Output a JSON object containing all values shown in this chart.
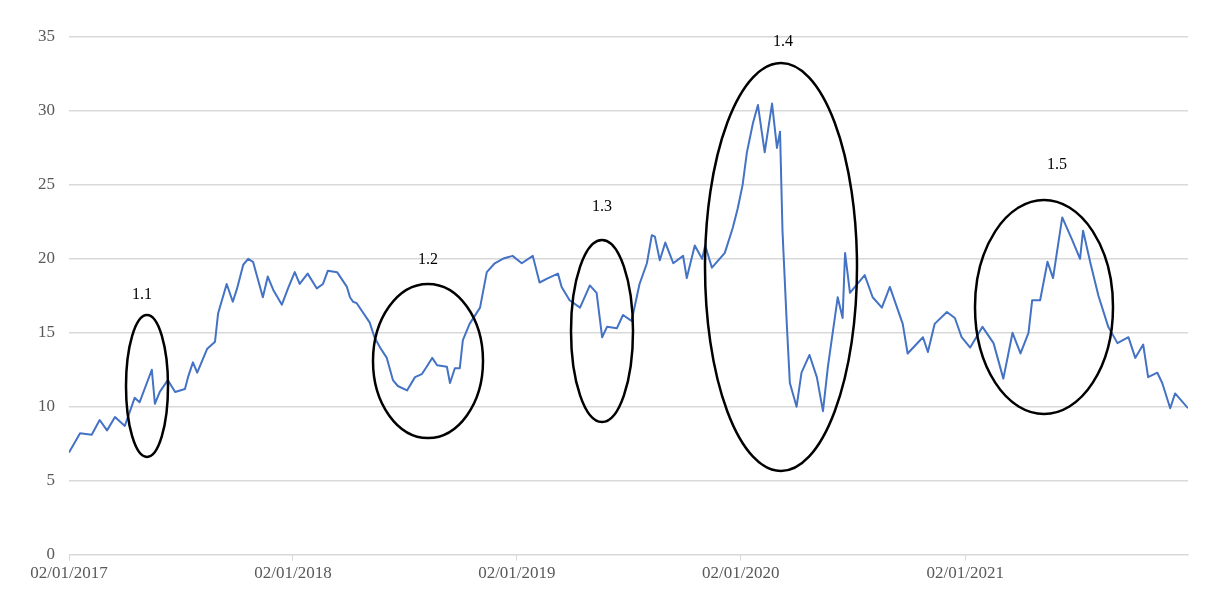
{
  "chart_data": {
    "type": "line",
    "x": [
      "2017-01-02",
      "2017-01-20",
      "2017-02-08",
      "2017-02-21",
      "2017-03-05",
      "2017-03-18",
      "2017-04-03",
      "2017-04-19",
      "2017-04-27",
      "2017-05-17",
      "2017-05-22",
      "2017-05-30",
      "2017-06-12",
      "2017-06-24",
      "2017-07-10",
      "2017-07-15",
      "2017-07-23",
      "2017-07-30",
      "2017-08-15",
      "2017-08-28",
      "2017-09-02",
      "2017-09-16",
      "2017-09-26",
      "2017-10-03",
      "2017-10-13",
      "2017-10-21",
      "2017-10-29",
      "2017-11-14",
      "2017-11-22",
      "2017-12-01",
      "2017-12-15",
      "2017-12-25",
      "2018-01-05",
      "2018-01-13",
      "2018-01-26",
      "2018-02-10",
      "2018-02-20",
      "2018-02-28",
      "2018-03-15",
      "2018-03-31",
      "2018-04-05",
      "2018-04-10",
      "2018-04-16",
      "2018-05-07",
      "2018-05-15",
      "2018-05-24",
      "2018-06-04",
      "2018-06-14",
      "2018-06-22",
      "2018-07-07",
      "2018-07-20",
      "2018-07-31",
      "2018-08-08",
      "2018-08-17",
      "2018-08-25",
      "2018-09-10",
      "2018-09-15",
      "2018-09-23",
      "2018-10-01",
      "2018-10-06",
      "2018-10-17",
      "2018-11-03",
      "2018-11-14",
      "2018-11-27",
      "2018-12-10",
      "2018-12-26",
      "2019-01-10",
      "2019-01-28",
      "2019-02-08",
      "2019-02-22",
      "2019-03-10",
      "2019-03-16",
      "2019-03-29",
      "2019-04-15",
      "2019-05-01",
      "2019-05-12",
      "2019-05-21",
      "2019-05-29",
      "2019-06-14",
      "2019-06-24",
      "2019-07-08",
      "2019-07-21",
      "2019-08-02",
      "2019-08-10",
      "2019-08-15",
      "2019-08-23",
      "2019-09-01",
      "2019-09-14",
      "2019-09-30",
      "2019-10-06",
      "2019-10-19",
      "2019-10-31",
      "2019-11-05",
      "2019-11-16",
      "2019-12-07",
      "2019-12-20",
      "2019-12-28",
      "2020-01-05",
      "2020-01-12",
      "2020-01-22",
      "2020-01-30",
      "2020-02-10",
      "2020-02-22",
      "2020-03-01",
      "2020-03-06",
      "2020-03-10",
      "2020-03-17",
      "2020-03-22",
      "2020-04-02",
      "2020-04-10",
      "2020-04-23",
      "2020-05-05",
      "2020-05-15",
      "2020-05-23",
      "2020-06-08",
      "2020-06-16",
      "2020-06-20",
      "2020-06-28",
      "2020-07-22",
      "2020-08-04",
      "2020-08-19",
      "2020-09-01",
      "2020-09-22",
      "2020-09-30",
      "2020-10-25",
      "2020-11-02",
      "2020-11-13",
      "2020-12-03",
      "2020-12-16",
      "2020-12-27",
      "2021-01-10",
      "2021-01-30",
      "2021-02-17",
      "2021-03-05",
      "2021-03-20",
      "2021-04-02",
      "2021-04-15",
      "2021-04-21",
      "2021-05-04",
      "2021-05-16",
      "2021-05-25",
      "2021-06-09",
      "2021-06-25",
      "2021-07-08",
      "2021-07-13",
      "2021-07-25",
      "2021-08-07",
      "2021-08-23",
      "2021-09-07",
      "2021-09-25",
      "2021-10-06",
      "2021-10-19",
      "2021-10-27",
      "2021-11-11",
      "2021-11-19",
      "2021-12-02",
      "2021-12-10",
      "2021-12-31"
    ],
    "series": [
      {
        "color": "#4472c4",
        "values": [
          6.9,
          8.2,
          8.1,
          9.1,
          8.4,
          9.3,
          8.7,
          10.6,
          10.3,
          12.5,
          10.2,
          11.0,
          11.8,
          11.0,
          11.2,
          12.0,
          13.0,
          12.3,
          13.9,
          14.4,
          16.3,
          18.3,
          17.1,
          18.0,
          19.6,
          20.0,
          19.8,
          17.4,
          18.8,
          17.9,
          16.9,
          18.0,
          19.1,
          18.3,
          19.0,
          18.0,
          18.3,
          19.2,
          19.1,
          18.1,
          17.4,
          17.1,
          17.0,
          15.7,
          14.7,
          14.0,
          13.3,
          11.8,
          11.4,
          11.1,
          12.0,
          12.2,
          12.7,
          13.3,
          12.8,
          12.7,
          11.6,
          12.6,
          12.6,
          14.5,
          15.6,
          16.7,
          19.1,
          19.7,
          20.0,
          20.2,
          19.7,
          20.2,
          18.4,
          18.7,
          19.0,
          18.1,
          17.2,
          16.7,
          18.2,
          17.7,
          14.7,
          15.4,
          15.3,
          16.2,
          15.8,
          18.3,
          19.7,
          21.6,
          21.5,
          19.9,
          21.1,
          19.7,
          20.2,
          18.7,
          20.9,
          20.0,
          20.9,
          19.4,
          20.4,
          22.1,
          23.4,
          25.0,
          27.2,
          29.2,
          30.4,
          27.2,
          30.5,
          27.5,
          28.6,
          21.9,
          15.6,
          11.6,
          10.0,
          12.3,
          13.5,
          12.0,
          9.7,
          12.7,
          17.4,
          16.0,
          20.4,
          17.7,
          18.9,
          17.4,
          16.7,
          18.1,
          15.6,
          13.6,
          14.7,
          13.7,
          15.6,
          16.4,
          16.0,
          14.7,
          14.0,
          15.4,
          14.3,
          11.9,
          15.0,
          13.6,
          15.0,
          17.2,
          17.2,
          19.8,
          18.7,
          22.8,
          21.3,
          20.0,
          21.9,
          19.7,
          17.5,
          15.4,
          14.3,
          14.7,
          13.3,
          14.2,
          12.0,
          12.3,
          11.6,
          9.9,
          10.9,
          9.9
        ]
      }
    ],
    "xlim": [
      "2017-01-02",
      "2021-12-31"
    ],
    "xticks": [
      {
        "value": "2017-01-02",
        "label": "02/01/2017"
      },
      {
        "value": "2018-01-02",
        "label": "02/01/2018"
      },
      {
        "value": "2019-01-02",
        "label": "02/01/2019"
      },
      {
        "value": "2020-01-02",
        "label": "02/01/2020"
      },
      {
        "value": "2021-01-02",
        "label": "02/01/2021"
      }
    ],
    "ylim": [
      0,
      35
    ],
    "yticks": [
      0,
      5,
      10,
      15,
      20,
      25,
      30,
      35
    ],
    "grid": "y",
    "legend": false,
    "marker": "none",
    "line_style": "solid",
    "annotations": [
      "1.1",
      "1.2",
      "1.3",
      "1.4",
      "1.5"
    ]
  }
}
